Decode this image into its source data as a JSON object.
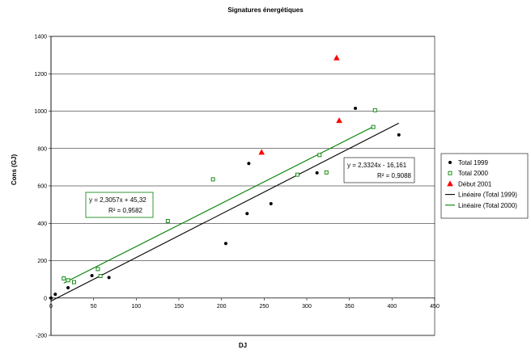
{
  "chart_data": {
    "type": "scatter",
    "title": "Signatures énergétiques",
    "xlabel": "DJ",
    "ylabel": "Cons (GJ)",
    "xlim": [
      0,
      450
    ],
    "ylim": [
      -200,
      1400
    ],
    "xticks": [
      0,
      50,
      100,
      150,
      200,
      250,
      300,
      350,
      400,
      450
    ],
    "yticks": [
      -200,
      0,
      200,
      400,
      600,
      800,
      1000,
      1200,
      1400
    ],
    "grid": "horizontal",
    "legend_position": "right",
    "series": [
      {
        "name": "Total 1999",
        "marker": "circle",
        "color": "#000000",
        "points": [
          [
            0,
            0
          ],
          [
            5,
            20
          ],
          [
            20,
            55
          ],
          [
            48,
            120
          ],
          [
            68,
            110
          ],
          [
            205,
            292
          ],
          [
            230,
            452
          ],
          [
            232,
            720
          ],
          [
            258,
            505
          ],
          [
            312,
            670
          ],
          [
            357,
            1015
          ],
          [
            408,
            873
          ]
        ]
      },
      {
        "name": "Total 2000",
        "marker": "square-open",
        "color": "#008000",
        "points": [
          [
            15,
            105
          ],
          [
            20,
            95
          ],
          [
            27,
            85
          ],
          [
            55,
            155
          ],
          [
            58,
            118
          ],
          [
            137,
            412
          ],
          [
            190,
            635
          ],
          [
            289,
            660
          ],
          [
            315,
            765
          ],
          [
            323,
            672
          ],
          [
            378,
            915
          ],
          [
            380,
            1005
          ]
        ]
      },
      {
        "name": "Début 2001",
        "marker": "triangle",
        "color": "#ff0000",
        "points": [
          [
            247,
            780
          ],
          [
            335,
            1285
          ],
          [
            338,
            950
          ]
        ]
      },
      {
        "name": "Linéaire (Total 1999)",
        "type": "line",
        "color": "#000000",
        "slope": 2.3324,
        "intercept": -16.161,
        "x_range": [
          0,
          408
        ]
      },
      {
        "name": "Linéaire (Total 2000)",
        "type": "line",
        "color": "#008000",
        "slope": 2.3057,
        "intercept": 45.32,
        "x_range": [
          15,
          380
        ]
      }
    ],
    "annotations": [
      {
        "lines": [
          "y = 2,3324x - 16,161",
          "R² = 0,9088"
        ],
        "color": "#000000"
      },
      {
        "lines": [
          "y = 2,3057x + 45,32",
          "R² = 0,9582"
        ],
        "color": "#008000"
      }
    ]
  }
}
